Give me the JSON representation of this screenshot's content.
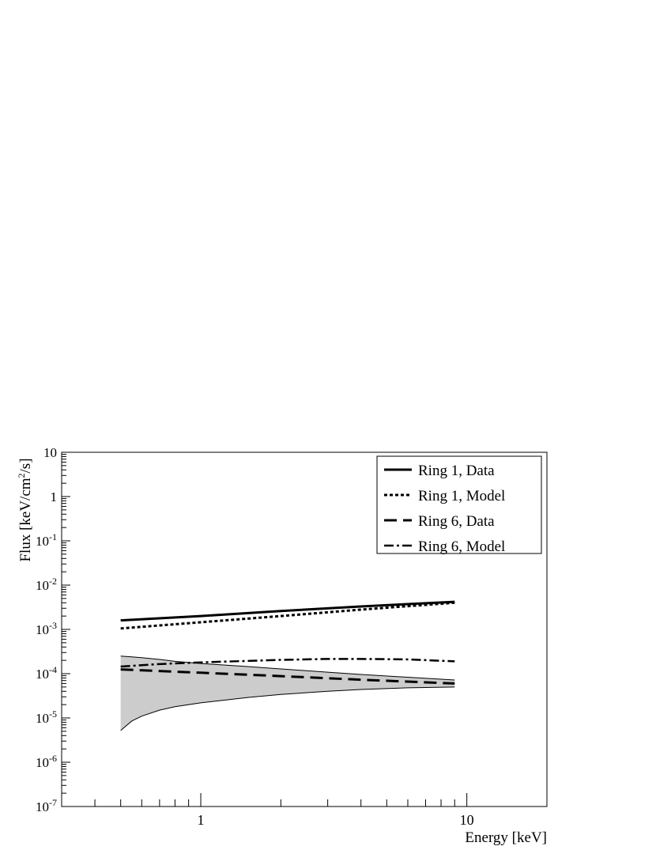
{
  "chart_data": {
    "type": "line",
    "title": "",
    "xlabel": "Energy [keV]",
    "ylabel_base": "Flux [keV/cm",
    "ylabel_sup": "2",
    "ylabel_tail": "/s]",
    "x_scale": "log",
    "y_scale": "log",
    "xlim": [
      0.3,
      20
    ],
    "ylim": [
      1e-07,
      10
    ],
    "x_major_ticks": [
      1,
      10
    ],
    "x_tick_labels": [
      "1",
      "10"
    ],
    "y_major_ticks": [
      {
        "value": 1e-07,
        "base": "10",
        "exp": "-7"
      },
      {
        "value": 1e-06,
        "base": "10",
        "exp": "-6"
      },
      {
        "value": 1e-05,
        "base": "10",
        "exp": "-5"
      },
      {
        "value": 0.0001,
        "base": "10",
        "exp": "-4"
      },
      {
        "value": 0.001,
        "base": "10",
        "exp": "-3"
      },
      {
        "value": 0.01,
        "base": "10",
        "exp": "-2"
      },
      {
        "value": 0.1,
        "base": "10",
        "exp": "-1"
      },
      {
        "value": 1,
        "base": "1",
        "exp": ""
      },
      {
        "value": 10,
        "base": "10",
        "exp": ""
      }
    ],
    "grid": false,
    "legend_position": "top-right",
    "series": [
      {
        "name": "Ring 1, Data",
        "style": "solid",
        "color": "#000000",
        "x": [
          0.5,
          1,
          2,
          4,
          9
        ],
        "y": [
          0.0016,
          0.002,
          0.0026,
          0.0033,
          0.0042
        ]
      },
      {
        "name": "Ring 1, Model",
        "style": "dotted",
        "color": "#000000",
        "x": [
          0.5,
          1,
          2,
          4,
          9
        ],
        "y": [
          0.00105,
          0.00145,
          0.002,
          0.0028,
          0.004
        ]
      },
      {
        "name": "Ring 6, Data",
        "style": "dashed",
        "color": "#000000",
        "x": [
          0.5,
          1,
          2,
          4,
          9
        ],
        "y": [
          0.000125,
          0.000105,
          8.8e-05,
          7.3e-05,
          6e-05
        ]
      },
      {
        "name": "Ring 6, Model",
        "style": "dashdot",
        "color": "#000000",
        "x": [
          0.5,
          0.7,
          1,
          2,
          3,
          4,
          6,
          9
        ],
        "y": [
          0.000145,
          0.000165,
          0.00018,
          0.000205,
          0.000215,
          0.000215,
          0.00021,
          0.00019
        ]
      }
    ],
    "band": {
      "fill_color": "#cccccc",
      "x": [
        0.5,
        0.55,
        0.6,
        0.7,
        0.8,
        1,
        1.5,
        2,
        3,
        4,
        6,
        9
      ],
      "upper": [
        0.00025,
        0.00024,
        0.00023,
        0.00021,
        0.00019,
        0.00017,
        0.000145,
        0.000128,
        0.000108,
        9.6e-05,
        8.3e-05,
        7.2e-05
      ],
      "lower": [
        5.2e-06,
        8.5e-06,
        1.1e-05,
        1.5e-05,
        1.8e-05,
        2.2e-05,
        2.9e-05,
        3.4e-05,
        4e-05,
        4.4e-05,
        4.8e-05,
        5e-05
      ]
    }
  }
}
